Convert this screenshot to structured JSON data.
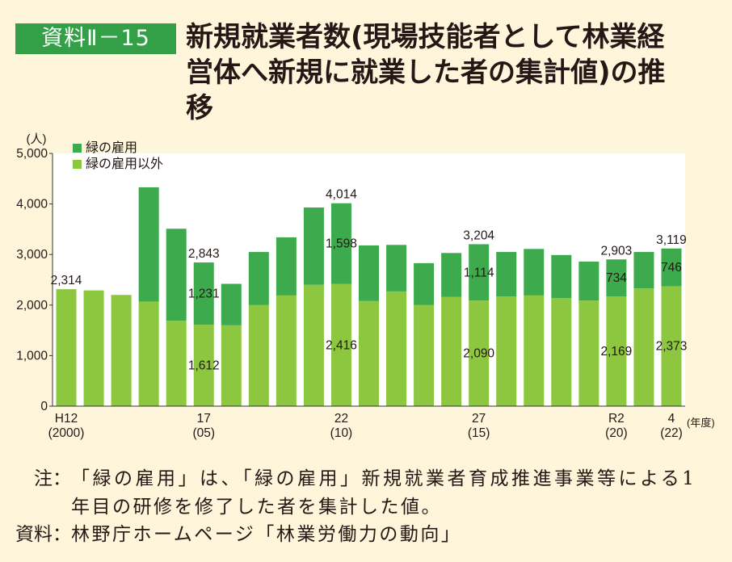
{
  "header": {
    "badge": "資料Ⅱ－15"
  },
  "chart_data": {
    "type": "bar",
    "stacked": true,
    "title_lines": [
      "新規就業者数(現場技能者として林業経",
      "営体へ新規に就業した者の集計値)の推",
      "移"
    ],
    "ylabel": "(人)",
    "xlabel": "(年度)",
    "ylim": [
      0,
      5000
    ],
    "grid": false,
    "legend_position": "top-left",
    "y_ticks": [
      {
        "value": 0,
        "label": "0"
      },
      {
        "value": 1000,
        "label": "1,000"
      },
      {
        "value": 2000,
        "label": "2,000"
      },
      {
        "value": 3000,
        "label": "3,000"
      },
      {
        "value": 4000,
        "label": "4,000"
      },
      {
        "value": 5000,
        "label": "5,000"
      }
    ],
    "x": [
      2000,
      2001,
      2002,
      2003,
      2004,
      2005,
      2006,
      2007,
      2008,
      2009,
      2010,
      2011,
      2012,
      2013,
      2014,
      2015,
      2016,
      2017,
      2018,
      2019,
      2020,
      2021,
      2022
    ],
    "x_ticks": [
      {
        "x": 2000,
        "label": "H12",
        "sub": "(2000)"
      },
      {
        "x": 2005,
        "label": "17",
        "sub": "(05)"
      },
      {
        "x": 2010,
        "label": "22",
        "sub": "(10)"
      },
      {
        "x": 2015,
        "label": "27",
        "sub": "(15)"
      },
      {
        "x": 2020,
        "label": "R2",
        "sub": "(20)"
      },
      {
        "x": 2022,
        "label": "4",
        "sub": "(22)"
      }
    ],
    "series": [
      {
        "name": "緑の雇用以外",
        "color": "#8dc63f",
        "values": [
          2314,
          2290,
          2200,
          2070,
          1690,
          1612,
          1600,
          2000,
          2190,
          2400,
          2416,
          2080,
          2270,
          2000,
          2160,
          2090,
          2170,
          2190,
          2140,
          2090,
          2169,
          2330,
          2373
        ],
        "value_labels": {
          "2005": "1,612",
          "2010": "2,416",
          "2015": "2,090",
          "2020": "2,169",
          "2022": "2,373"
        }
      },
      {
        "name": "緑の雇用",
        "color": "#3daa4d",
        "values": [
          0,
          0,
          0,
          2260,
          1820,
          1231,
          820,
          1050,
          1150,
          1530,
          1598,
          1100,
          920,
          830,
          870,
          1114,
          880,
          920,
          850,
          770,
          734,
          720,
          746
        ],
        "value_labels": {
          "2005": "1,231",
          "2010": "1,598",
          "2015": "1,114",
          "2020": "734",
          "2022": "746"
        }
      }
    ],
    "total_labels": {
      "2000": "2,314",
      "2005": "2,843",
      "2010": "4,014",
      "2015": "3,204",
      "2020": "2,903",
      "2022": "3,119"
    }
  },
  "notes": {
    "note_label": "注：",
    "note_lines": [
      "「緑の雇用」は、「緑の雇用」新規就業者育成推進事業等による1",
      "年目の研修を修了した者を集計した値。"
    ],
    "source_label": "資料：",
    "source_text": "林野庁ホームページ「林業労働力の動向」"
  }
}
